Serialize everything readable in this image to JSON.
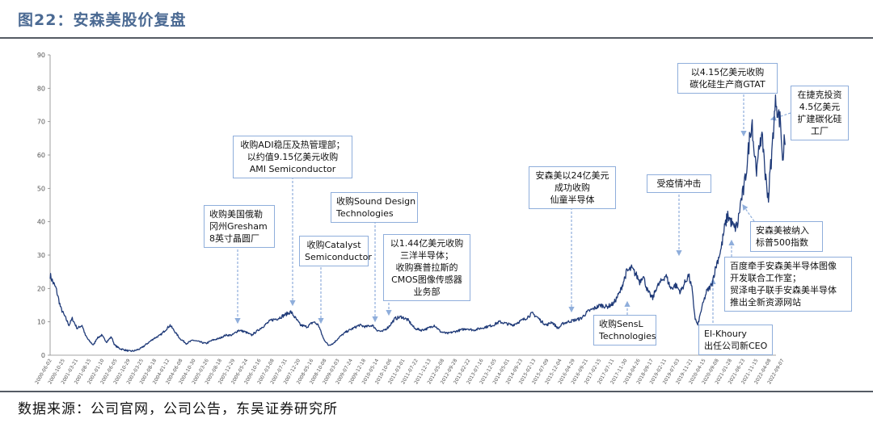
{
  "title": "图22：安森美股价复盘",
  "source": "数据来源：公司官网，公司公告，东吴证券研究所",
  "chart_data": {
    "type": "line",
    "title": "",
    "xlabel": "",
    "ylabel": "",
    "ylim": [
      0,
      90
    ],
    "yticks": [
      0,
      10,
      20,
      30,
      40,
      50,
      60,
      70,
      80,
      90
    ],
    "x_range": [
      "2000-06-02",
      "2022-09-07"
    ],
    "xtick_labels": [
      "2000-06-02",
      "2000-10-25",
      "2001-03-21",
      "2001-08-15",
      "2002-01-10",
      "2002-06-05",
      "2002-10-29",
      "2003-03-25",
      "2003-08-18",
      "2004-01-12",
      "2004-06-08",
      "2004-10-30",
      "2005-03-26",
      "2005-08-18",
      "2005-12-29",
      "2006-05-24",
      "2006-10-16",
      "2007-03-08",
      "2007-07-31",
      "2007-12-20",
      "2008-05-16",
      "2008-10-08",
      "2009-03-03",
      "2009-07-24",
      "2009-12-18",
      "2010-05-14",
      "2010-10-06",
      "2011-03-01",
      "2011-07-22",
      "2011-12-13",
      "2012-05-08",
      "2012-09-28",
      "2013-02-22",
      "2013-07-16",
      "2013-12-05",
      "2014-05-01",
      "2014-09-23",
      "2015-02-13",
      "2015-07-09",
      "2015-12-04",
      "2016-04-29",
      "2016-09-21",
      "2017-02-15",
      "2017-07-11",
      "2017-11-30",
      "2018-04-26",
      "2018-09-17",
      "2019-02-11",
      "2019-07-03",
      "2019-11-21",
      "2020-04-15",
      "2020-09-08",
      "2021-01-28",
      "2021-06-23",
      "2021-11-15",
      "2022-04-08",
      "2022-09-07"
    ],
    "series": [
      {
        "values": [
          [
            2000.42,
            24
          ],
          [
            2000.5,
            22
          ],
          [
            2000.6,
            20
          ],
          [
            2000.75,
            14
          ],
          [
            2000.9,
            11
          ],
          [
            2001.0,
            9
          ],
          [
            2001.1,
            11
          ],
          [
            2001.25,
            8
          ],
          [
            2001.4,
            9
          ],
          [
            2001.5,
            6
          ],
          [
            2001.6,
            4.5
          ],
          [
            2001.75,
            3
          ],
          [
            2001.85,
            5
          ],
          [
            2002.0,
            6
          ],
          [
            2002.15,
            4
          ],
          [
            2002.3,
            5.5
          ],
          [
            2002.4,
            3
          ],
          [
            2002.55,
            2
          ],
          [
            2002.7,
            1.6
          ],
          [
            2002.85,
            1.2
          ],
          [
            2003.0,
            1.3
          ],
          [
            2003.2,
            2
          ],
          [
            2003.4,
            3.5
          ],
          [
            2003.6,
            5
          ],
          [
            2003.8,
            6
          ],
          [
            2004.0,
            8
          ],
          [
            2004.1,
            9
          ],
          [
            2004.25,
            7
          ],
          [
            2004.4,
            5
          ],
          [
            2004.6,
            3.5
          ],
          [
            2004.8,
            4.5
          ],
          [
            2005.0,
            4
          ],
          [
            2005.2,
            3.5
          ],
          [
            2005.4,
            4.5
          ],
          [
            2005.6,
            5
          ],
          [
            2005.8,
            6
          ],
          [
            2006.0,
            6
          ],
          [
            2006.2,
            7.5
          ],
          [
            2006.4,
            7
          ],
          [
            2006.6,
            6
          ],
          [
            2006.8,
            7.5
          ],
          [
            2007.0,
            9
          ],
          [
            2007.2,
            10.5
          ],
          [
            2007.4,
            11
          ],
          [
            2007.6,
            12
          ],
          [
            2007.8,
            13
          ],
          [
            2007.95,
            11
          ],
          [
            2008.1,
            9
          ],
          [
            2008.3,
            8.5
          ],
          [
            2008.5,
            10
          ],
          [
            2008.65,
            9
          ],
          [
            2008.8,
            5
          ],
          [
            2008.95,
            3
          ],
          [
            2009.1,
            3.5
          ],
          [
            2009.3,
            5.5
          ],
          [
            2009.5,
            7
          ],
          [
            2009.7,
            8
          ],
          [
            2009.9,
            9
          ],
          [
            2010.1,
            8.5
          ],
          [
            2010.3,
            9
          ],
          [
            2010.45,
            7.5
          ],
          [
            2010.6,
            7
          ],
          [
            2010.8,
            8.5
          ],
          [
            2011.0,
            11
          ],
          [
            2011.2,
            11.5
          ],
          [
            2011.4,
            10.5
          ],
          [
            2011.6,
            8
          ],
          [
            2011.8,
            7.5
          ],
          [
            2012.0,
            8
          ],
          [
            2012.2,
            9
          ],
          [
            2012.4,
            7
          ],
          [
            2012.6,
            6.5
          ],
          [
            2012.8,
            7
          ],
          [
            2013.0,
            7.5
          ],
          [
            2013.2,
            8
          ],
          [
            2013.4,
            7.5
          ],
          [
            2013.6,
            8
          ],
          [
            2013.8,
            8.5
          ],
          [
            2014.0,
            9
          ],
          [
            2014.2,
            10
          ],
          [
            2014.4,
            9.5
          ],
          [
            2014.6,
            9
          ],
          [
            2014.8,
            10
          ],
          [
            2015.0,
            11
          ],
          [
            2015.2,
            12.5
          ],
          [
            2015.35,
            11.5
          ],
          [
            2015.5,
            10
          ],
          [
            2015.65,
            9
          ],
          [
            2015.8,
            10
          ],
          [
            2016.0,
            8
          ],
          [
            2016.15,
            9.5
          ],
          [
            2016.3,
            10
          ],
          [
            2016.5,
            10.5
          ],
          [
            2016.7,
            11
          ],
          [
            2016.9,
            13
          ],
          [
            2017.1,
            14
          ],
          [
            2017.3,
            15
          ],
          [
            2017.5,
            14.5
          ],
          [
            2017.7,
            15.5
          ],
          [
            2017.9,
            19
          ],
          [
            2018.0,
            22
          ],
          [
            2018.1,
            25
          ],
          [
            2018.25,
            26
          ],
          [
            2018.4,
            24
          ],
          [
            2018.5,
            22
          ],
          [
            2018.6,
            24
          ],
          [
            2018.75,
            19
          ],
          [
            2018.9,
            17
          ],
          [
            2019.0,
            20
          ],
          [
            2019.15,
            22
          ],
          [
            2019.3,
            24
          ],
          [
            2019.45,
            20
          ],
          [
            2019.6,
            21
          ],
          [
            2019.75,
            19
          ],
          [
            2019.9,
            22
          ],
          [
            2020.0,
            24
          ],
          [
            2020.1,
            20
          ],
          [
            2020.2,
            11
          ],
          [
            2020.28,
            9
          ],
          [
            2020.4,
            14
          ],
          [
            2020.55,
            19
          ],
          [
            2020.7,
            21
          ],
          [
            2020.85,
            27
          ],
          [
            2021.0,
            32
          ],
          [
            2021.1,
            38
          ],
          [
            2021.2,
            42
          ],
          [
            2021.3,
            40
          ],
          [
            2021.4,
            38
          ],
          [
            2021.5,
            39
          ],
          [
            2021.6,
            46
          ],
          [
            2021.7,
            50
          ],
          [
            2021.8,
            58
          ],
          [
            2021.9,
            68
          ],
          [
            2021.95,
            70
          ],
          [
            2022.0,
            62
          ],
          [
            2022.1,
            55
          ],
          [
            2022.2,
            66
          ],
          [
            2022.3,
            62
          ],
          [
            2022.35,
            54
          ],
          [
            2022.45,
            47
          ],
          [
            2022.5,
            55
          ],
          [
            2022.55,
            60
          ],
          [
            2022.6,
            68
          ],
          [
            2022.68,
            77
          ],
          [
            2022.75,
            72
          ],
          [
            2022.82,
            70
          ],
          [
            2022.86,
            62
          ],
          [
            2022.9,
            57
          ],
          [
            2022.93,
            67
          ],
          [
            2022.96,
            63
          ]
        ]
      }
    ],
    "annotations": [
      {
        "lines": [
          "收购ADI稳压及热管理部；",
          "以约值9.15亿美元收购",
          "AMI Semiconductor"
        ]
      },
      {
        "lines": [
          "收购美国俄勒",
          "冈州Gresham",
          "8英寸晶圆厂"
        ]
      },
      {
        "lines": [
          "收购Catalyst",
          "Semiconductor"
        ]
      },
      {
        "lines": [
          "收购Sound Design",
          "Technologies"
        ]
      },
      {
        "lines": [
          "以1.44亿美元收购",
          "三洋半导体；",
          "收购赛普拉斯的",
          "CMOS图像传感器",
          "业务部"
        ]
      },
      {
        "lines": [
          "安森美以24亿美元",
          "成功收购",
          "仙童半导体"
        ]
      },
      {
        "lines": [
          "收购SensL",
          "Technologies"
        ]
      },
      {
        "lines": [
          "受疫情冲击"
        ]
      },
      {
        "lines": [
          "El-Khoury",
          "出任公司新CEO"
        ]
      },
      {
        "lines": [
          "以4.15亿美元收购",
          "碳化硅生产商GTAT"
        ]
      },
      {
        "lines": [
          "在捷克投资",
          "4.5亿美元",
          "扩建碳化硅",
          "工厂"
        ]
      },
      {
        "lines": [
          "安森美被纳入",
          "标普500指数"
        ]
      },
      {
        "lines": [
          "百度牵手安森美半导体图像",
          "开发联合工作室；",
          "贸泽电子联手安森美半导体",
          "推出全新资源网站"
        ]
      }
    ]
  }
}
